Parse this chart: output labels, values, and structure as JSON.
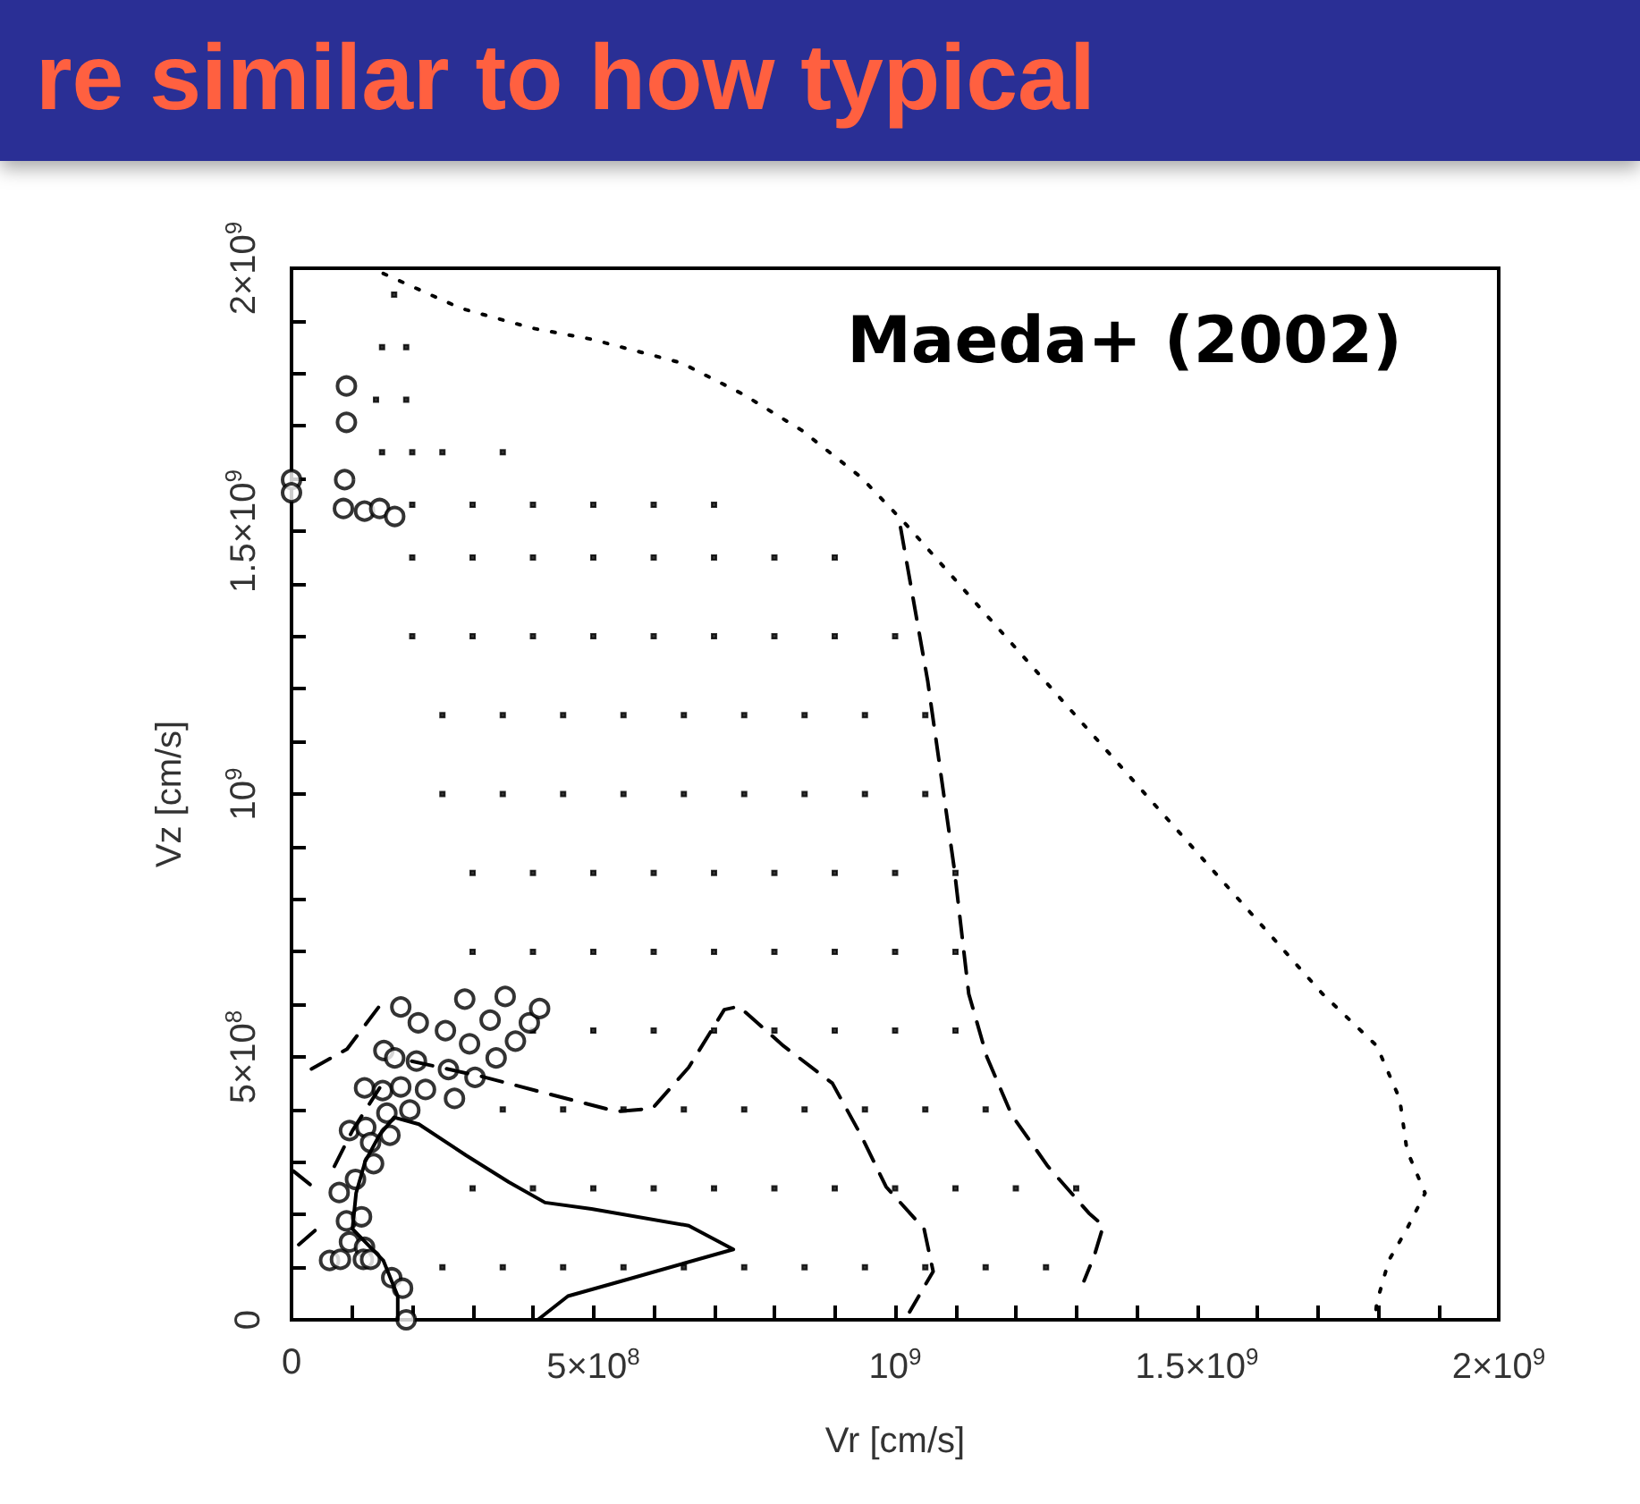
{
  "chart_data": {
    "type": "scatter",
    "title": "Maeda+ (2002)",
    "xlabel": "Vr [cm/s]",
    "ylabel": "Vz [cm/s]",
    "annotations": [
      "re similar to how typical"
    ],
    "xlim": [
      0,
      2000000000.0
    ],
    "ylim": [
      0,
      2000000000.0
    ],
    "xticks": [
      0,
      {
        "value": 100000000.0,
        "label": null
      },
      {
        "value": 200000000.0,
        "label": null
      },
      {
        "value": 300000000.0,
        "label": null
      },
      {
        "value": 400000000.0,
        "label": null
      },
      {
        "value": 500000000.0,
        "label": "5×10$^{8}$"
      },
      {
        "value": 600000000.0,
        "label": null
      },
      {
        "value": 700000000.0,
        "label": null
      },
      {
        "value": 800000000.0,
        "label": null
      },
      {
        "value": 900000000.0,
        "label": null
      },
      {
        "value": 1000000000.0,
        "label": "10$^{9}$"
      },
      {
        "value": 1100000000.0,
        "label": null
      },
      {
        "value": 1200000000.0,
        "label": null
      },
      {
        "value": 1300000000.0,
        "label": null
      },
      {
        "value": 1400000000.0,
        "label": null
      },
      {
        "value": 1500000000.0,
        "label": "1.5×10$^{9}$"
      },
      {
        "value": 1600000000.0,
        "label": null
      },
      {
        "value": 1700000000.0,
        "label": null
      },
      {
        "value": 1800000000.0,
        "label": null
      },
      {
        "value": 1900000000.0,
        "label": null
      },
      {
        "value": 2000000000.0,
        "label": "2×10$^{9}$"
      }
    ],
    "yticks": [
      0,
      {
        "value": 100000000.0,
        "label": null
      },
      {
        "value": 200000000.0,
        "label": null
      },
      {
        "value": 300000000.0,
        "label": null
      },
      {
        "value": 400000000.0,
        "label": null
      },
      {
        "value": 500000000.0,
        "label": "5×10$^{8}$"
      },
      {
        "value": 600000000.0,
        "label": null
      },
      {
        "value": 700000000.0,
        "label": null
      },
      {
        "value": 800000000.0,
        "label": null
      },
      {
        "value": 900000000.0,
        "label": null
      },
      {
        "value": 1000000000.0,
        "label": "10$^{9}$"
      },
      {
        "value": 1100000000.0,
        "label": null
      },
      {
        "value": 1200000000.0,
        "label": null
      },
      {
        "value": 1300000000.0,
        "label": null
      },
      {
        "value": 1400000000.0,
        "label": null
      },
      {
        "value": 1500000000.0,
        "label": "1.5×10$^{9}$"
      },
      {
        "value": 1600000000.0,
        "label": null
      },
      {
        "value": 1700000000.0,
        "label": null
      },
      {
        "value": 1800000000.0,
        "label": null
      },
      {
        "value": 1900000000.0,
        "label": null
      },
      {
        "value": 2000000000.0,
        "label": "2×10$^{9}$"
      }
    ],
    "series": [
      {
        "marker": "square",
        "color": "#000000",
        "x": [
          170000000.0,
          150000000.0,
          190000000.0,
          140000000.0,
          190000000.0,
          150000000.0,
          200000000.0,
          250000000.0,
          350000000.0,
          200000000.0,
          300000000.0,
          400000000.0,
          500000000.0,
          600000000.0,
          700000000.0,
          200000000.0,
          300000000.0,
          400000000.0,
          500000000.0,
          600000000.0,
          700000000.0,
          800000000.0,
          900000000.0,
          200000000.0,
          300000000.0,
          400000000.0,
          500000000.0,
          600000000.0,
          700000000.0,
          800000000.0,
          900000000.0,
          1000000000.0,
          250000000.0,
          350000000.0,
          450000000.0,
          550000000.0,
          650000000.0,
          750000000.0,
          850000000.0,
          950000000.0,
          1050000000.0,
          250000000.0,
          350000000.0,
          450000000.0,
          550000000.0,
          650000000.0,
          750000000.0,
          850000000.0,
          950000000.0,
          1050000000.0,
          300000000.0,
          400000000.0,
          500000000.0,
          600000000.0,
          700000000.0,
          800000000.0,
          900000000.0,
          1000000000.0,
          1100000000.0,
          300000000.0,
          400000000.0,
          500000000.0,
          600000000.0,
          700000000.0,
          800000000.0,
          900000000.0,
          1000000000.0,
          1100000000.0,
          400000000.0,
          500000000.0,
          600000000.0,
          700000000.0,
          800000000.0,
          900000000.0,
          1000000000.0,
          1100000000.0,
          350000000.0,
          450000000.0,
          550000000.0,
          650000000.0,
          750000000.0,
          850000000.0,
          950000000.0,
          1050000000.0,
          1150000000.0,
          300000000.0,
          400000000.0,
          500000000.0,
          600000000.0,
          700000000.0,
          800000000.0,
          900000000.0,
          1000000000.0,
          1100000000.0,
          1200000000.0,
          1300000000.0,
          250000000.0,
          350000000.0,
          450000000.0,
          550000000.0,
          650000000.0,
          750000000.0,
          850000000.0,
          950000000.0,
          1050000000.0,
          1150000000.0,
          1250000000.0
        ],
        "values": [
          1950000000.0,
          1850000000.0,
          1850000000.0,
          1750000000.0,
          1750000000.0,
          1650000000.0,
          1650000000.0,
          1650000000.0,
          1650000000.0,
          1550000000.0,
          1550000000.0,
          1550000000.0,
          1550000000.0,
          1550000000.0,
          1550000000.0,
          1450000000.0,
          1450000000.0,
          1450000000.0,
          1450000000.0,
          1450000000.0,
          1450000000.0,
          1450000000.0,
          1450000000.0,
          1300000000.0,
          1300000000.0,
          1300000000.0,
          1300000000.0,
          1300000000.0,
          1300000000.0,
          1300000000.0,
          1300000000.0,
          1300000000.0,
          1150000000.0,
          1150000000.0,
          1150000000.0,
          1150000000.0,
          1150000000.0,
          1150000000.0,
          1150000000.0,
          1150000000.0,
          1150000000.0,
          1000000000.0,
          1000000000.0,
          1000000000.0,
          1000000000.0,
          1000000000.0,
          1000000000.0,
          1000000000.0,
          1000000000.0,
          1000000000.0,
          850000000.0,
          850000000.0,
          850000000.0,
          850000000.0,
          850000000.0,
          850000000.0,
          850000000.0,
          850000000.0,
          850000000.0,
          700000000.0,
          700000000.0,
          700000000.0,
          700000000.0,
          700000000.0,
          700000000.0,
          700000000.0,
          700000000.0,
          700000000.0,
          550000000.0,
          550000000.0,
          550000000.0,
          550000000.0,
          550000000.0,
          550000000.0,
          550000000.0,
          550000000.0,
          400000000.0,
          400000000.0,
          400000000.0,
          400000000.0,
          400000000.0,
          400000000.0,
          400000000.0,
          400000000.0,
          400000000.0,
          250000000.0,
          250000000.0,
          250000000.0,
          250000000.0,
          250000000.0,
          250000000.0,
          250000000.0,
          250000000.0,
          250000000.0,
          250000000.0,
          250000000.0,
          100000000.0,
          100000000.0,
          100000000.0,
          100000000.0,
          100000000.0,
          100000000.0,
          100000000.0,
          100000000.0,
          100000000.0,
          100000000.0,
          100000000.0
        ]
      },
      {
        "marker": "circle",
        "color": "#000000",
        "x": [
          181000000.0,
          210000000.0,
          255000000.0,
          287000000.0,
          329000000.0,
          354000000.0,
          394000000.0,
          411000000.0,
          371000000.0,
          339000000.0,
          295000000.0,
          153000000.0,
          171000000.0,
          207000000.0,
          260000000.0,
          304000000.0,
          270000000.0,
          121000000.0,
          151000000.0,
          181000000.0,
          222000000.0,
          158000000.0,
          196000000.0,
          96000000.0,
          123000000.0,
          131000000.0,
          163000000.0,
          136000000.0,
          106000000.0,
          79000000.0,
          91000000.0,
          116000000.0,
          96000000.0,
          121000000.0,
          63000000.0,
          81000000.0,
          119000000.0,
          131000000.0,
          166000000.0,
          184000000.0,
          190000000.0,
          91000000.0,
          91000000.0,
          88000000.0,
          86000000.0,
          0,
          0,
          121000000.0,
          146000000.0,
          171000000.0
        ],
        "values": [
          595000000.0,
          565000000.0,
          550000000.0,
          610000000.0,
          570000000.0,
          615000000.0,
          565000000.0,
          592000000.0,
          530000000.0,
          498000000.0,
          525000000.0,
          512000000.0,
          498000000.0,
          492000000.0,
          476000000.0,
          461000000.0,
          421000000.0,
          441000000.0,
          436000000.0,
          443000000.0,
          438000000.0,
          393000000.0,
          399000000.0,
          360000000.0,
          366000000.0,
          337000000.0,
          351000000.0,
          297000000.0,
          267000000.0,
          242000000.0,
          188000000.0,
          196000000.0,
          148000000.0,
          138000000.0,
          113000000.0,
          115000000.0,
          115000000.0,
          115000000.0,
          80000000.0,
          60000000.0,
          0,
          1776000000.0,
          1707000000.0,
          1598000000.0,
          1543000000.0,
          1598000000.0,
          1573000000.0,
          1538000000.0,
          1543000000.0,
          1528000000.0
        ]
      },
      {
        "type": "line",
        "marker": "none",
        "line_style": "solid",
        "color": "#000000",
        "x": [
          176000000.0,
          176000000.0,
          152000000.0,
          101000000.0,
          107000000.0,
          122000000.0,
          146000000.0,
          170000000.0,
          211000000.0,
          289000000.0,
          360000000.0,
          420000000.0,
          497000000.0,
          658000000.0,
          732000000.0,
          557000000.0,
          458000000.0,
          408000000.0
        ],
        "values": [
          0,
          45000000.0,
          113000000.0,
          173000000.0,
          241000000.0,
          301000000.0,
          352000000.0,
          385000000.0,
          372000000.0,
          313000000.0,
          262000000.0,
          223000000.0,
          211000000.0,
          179000000.0,
          134000000.0,
          77000000.0,
          45000000.0,
          0
        ]
      },
      {
        "type": "line",
        "marker": "none",
        "line_style": "dashed",
        "color": "#000000",
        "x": [
          33000000.0,
          92000000.0,
          155000000.0,
          null,
          199000000.0,
          318000000.0,
          438000000.0,
          539000000.0,
          598000000.0,
          658000000.0,
          717000000.0,
          741000000.0,
          815000000.0,
          896000000.0,
          943000000.0,
          985000000.0,
          1048000000.0,
          1063000000.0,
          1024000000.0,
          null,
          3000000.0,
          42000000.0,
          null,
          12000000.0,
          42000000.0,
          null,
          71000000.0,
          101000000.0,
          146000000.0
        ],
        "values": [
          477000000.0,
          515000000.0,
          611000000.0,
          null,
          492000000.0,
          462000000.0,
          426000000.0,
          396000000.0,
          402000000.0,
          480000000.0,
          590000000.0,
          596000000.0,
          521000000.0,
          450000000.0,
          352000000.0,
          253000000.0,
          173000000.0,
          92000000.0,
          15000000.0,
          null,
          283000000.0,
          247000000.0,
          null,
          143000000.0,
          173000000.0,
          null,
          292000000.0,
          360000000.0,
          441000000.0
        ]
      },
      {
        "type": "line",
        "marker": "none",
        "line_style": "dashed",
        "color": "#000000",
        "x": [
          1009000000.0,
          1054000000.0,
          1098000000.0,
          1122000000.0,
          1152000000.0,
          1193000000.0,
          1253000000.0,
          1321000000.0,
          1345000000.0,
          1330000000.0,
          1313000000.0
        ],
        "values": [
          1507000000.0,
          1215000000.0,
          858000000.0,
          620000000.0,
          500000000.0,
          390000000.0,
          292000000.0,
          203000000.0,
          179000000.0,
          122000000.0,
          74000000.0
        ]
      },
      {
        "type": "line",
        "marker": "none",
        "line_style": "dotted",
        "color": "#000000",
        "x": [
          152000000.0,
          280000000.0,
          399000000.0,
          497000000.0,
          646000000.0,
          747000000.0,
          845000000.0,
          943000000.0,
          1018000000.0,
          1708000000.0,
          1798000000.0,
          1836000000.0,
          1848000000.0,
          1878000000.0,
          1848000000.0,
          1818000000.0,
          1798000000.0,
          1795000000.0
        ],
        "values": [
          1990000000.0,
          1924000000.0,
          1886000000.0,
          1865000000.0,
          1820000000.0,
          1761000000.0,
          1692000000.0,
          1603000000.0,
          1513000000.0,
          620000000.0,
          521000000.0,
          420000000.0,
          322000000.0,
          241000000.0,
          173000000.0,
          113000000.0,
          33000000.0,
          0
        ]
      }
    ]
  }
}
